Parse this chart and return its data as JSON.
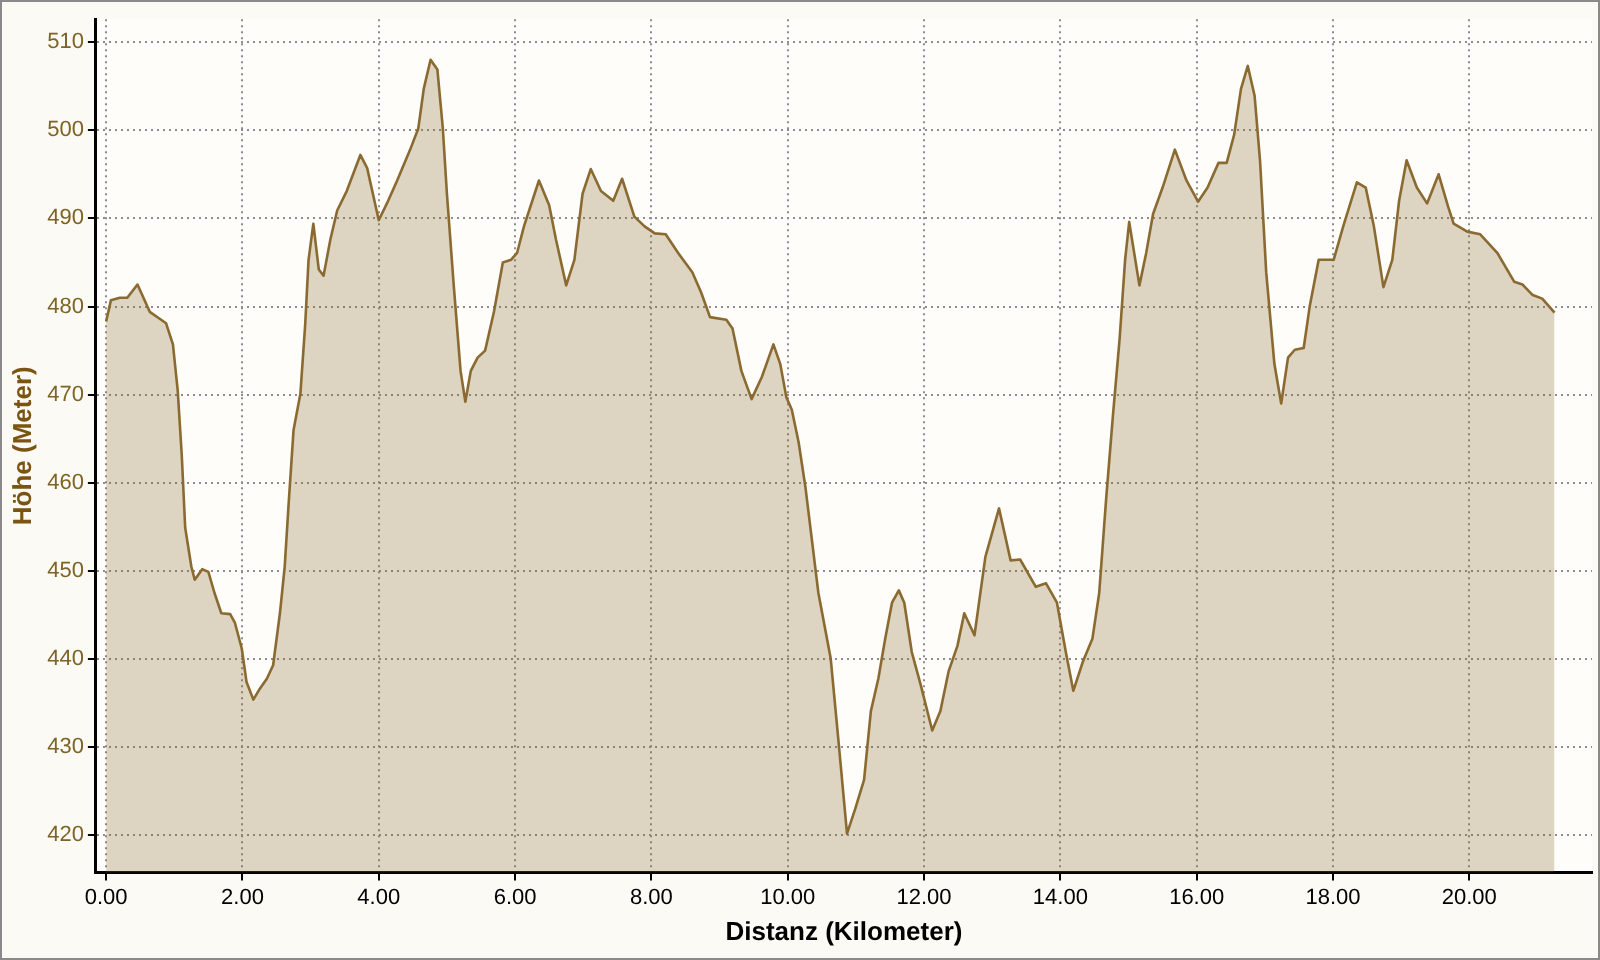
{
  "chart_data": {
    "type": "area",
    "xlabel": "Distanz (Kilometer)",
    "ylabel": "Höhe (Meter)",
    "x": [
      0,
      0.07,
      0.2,
      0.31,
      0.46,
      0.64,
      0.77,
      0.88,
      0.98,
      1.05,
      1.11,
      1.16,
      1.25,
      1.3,
      1.41,
      1.5,
      1.59,
      1.69,
      1.82,
      1.89,
      1.99,
      2.06,
      2.16,
      2.26,
      2.36,
      2.45,
      2.55,
      2.62,
      2.68,
      2.75,
      2.85,
      2.92,
      2.97,
      3.04,
      3.12,
      3.19,
      3.29,
      3.39,
      3.53,
      3.73,
      3.83,
      4.0,
      4.12,
      4.27,
      4.47,
      4.58,
      4.66,
      4.76,
      4.86,
      4.94,
      5.0,
      5.1,
      5.2,
      5.27,
      5.35,
      5.45,
      5.56,
      5.69,
      5.82,
      5.94,
      6.03,
      6.13,
      6.35,
      6.5,
      6.6,
      6.75,
      6.87,
      6.99,
      7.11,
      7.26,
      7.44,
      7.57,
      7.75,
      7.9,
      8.05,
      8.21,
      8.39,
      8.6,
      8.73,
      8.86,
      9.1,
      9.19,
      9.32,
      9.47,
      9.62,
      9.79,
      9.89,
      9.98,
      10.06,
      10.16,
      10.26,
      10.45,
      10.63,
      10.74,
      10.87,
      10.99,
      11.12,
      11.22,
      11.33,
      11.43,
      11.53,
      11.63,
      11.71,
      11.82,
      11.95,
      12.12,
      12.24,
      12.36,
      12.49,
      12.59,
      12.74,
      12.9,
      13.1,
      13.27,
      13.41,
      13.64,
      13.79,
      13.95,
      14.08,
      14.19,
      14.33,
      14.47,
      14.57,
      14.67,
      14.77,
      14.87,
      14.95,
      15.01,
      15.16,
      15.26,
      15.36,
      15.5,
      15.68,
      15.85,
      16.02,
      16.16,
      16.32,
      16.44,
      16.55,
      16.65,
      16.75,
      16.85,
      16.93,
      17.02,
      17.14,
      17.24,
      17.34,
      17.44,
      17.57,
      17.66,
      17.79,
      17.91,
      18.01,
      18.15,
      18.35,
      18.48,
      18.6,
      18.74,
      18.87,
      18.97,
      19.08,
      19.23,
      19.38,
      19.55,
      19.69,
      19.77,
      19.97,
      20.16,
      20.41,
      20.66,
      20.78,
      20.93,
      21.07,
      21.25
    ],
    "values": [
      478.3,
      480.7,
      481,
      481,
      482.5,
      479.4,
      478.7,
      478.1,
      475.7,
      470.5,
      463.1,
      454.9,
      450.5,
      449,
      450.2,
      449.9,
      447.5,
      445.2,
      445.1,
      444.1,
      441.2,
      437.4,
      435.4,
      436.7,
      437.8,
      439.3,
      445.2,
      450.5,
      457.9,
      466,
      470.1,
      477.9,
      485.3,
      489.4,
      484.2,
      483.5,
      487.6,
      490.9,
      493.1,
      497.2,
      495.7,
      489.8,
      491.7,
      494.3,
      498,
      500.2,
      504.7,
      508,
      506.9,
      500.2,
      492.8,
      482.4,
      472.7,
      469.2,
      472.7,
      474.2,
      475,
      479.4,
      485,
      485.3,
      486.1,
      489.1,
      494.3,
      491.5,
      487.6,
      482.4,
      485.3,
      492.8,
      495.6,
      493.1,
      492,
      494.5,
      490.2,
      489.1,
      488.3,
      488.2,
      486.1,
      483.9,
      481.6,
      478.8,
      478.5,
      477.5,
      472.7,
      469.5,
      472,
      475.7,
      473.5,
      469.7,
      468.3,
      464.6,
      459.5,
      447.5,
      440.1,
      431.1,
      420.2,
      423,
      426.3,
      434.1,
      437.8,
      442.3,
      446.4,
      447.8,
      446.4,
      440.8,
      437.1,
      431.9,
      434.1,
      438.6,
      441.5,
      445.2,
      442.7,
      451.6,
      457.1,
      451.2,
      451.3,
      448.2,
      448.6,
      446.4,
      440.8,
      436.4,
      439.7,
      442.3,
      447.5,
      458,
      467.5,
      476.4,
      485.3,
      489.6,
      482.4,
      486.1,
      490.5,
      493.5,
      497.8,
      494.3,
      491.9,
      493.5,
      496.3,
      496.3,
      499.5,
      504.7,
      507.3,
      503.9,
      496.5,
      483.9,
      473.5,
      469,
      474.2,
      475.1,
      475.3,
      480.1,
      485.3,
      485.3,
      485.3,
      489.1,
      494.1,
      493.5,
      489.1,
      482.2,
      485.3,
      492,
      496.6,
      493.5,
      491.7,
      495,
      491.3,
      489.4,
      488.5,
      488.2,
      486.1,
      482.8,
      482.5,
      481.3,
      480.9,
      479.3
    ],
    "color": "#8a6a30",
    "marker": "none",
    "xlim": [
      -0.15,
      21.8
    ],
    "ylim": [
      415.8,
      512.6
    ],
    "xticks": [
      {
        "value": 0,
        "label": "0.00"
      },
      {
        "value": 2,
        "label": "2.00"
      },
      {
        "value": 4,
        "label": "4.00"
      },
      {
        "value": 6,
        "label": "6.00"
      },
      {
        "value": 8,
        "label": "8.00"
      },
      {
        "value": 10,
        "label": "10.00"
      },
      {
        "value": 12,
        "label": "12.00"
      },
      {
        "value": 14,
        "label": "14.00"
      },
      {
        "value": 16,
        "label": "16.00"
      },
      {
        "value": 18,
        "label": "18.00"
      },
      {
        "value": 20,
        "label": "20.00"
      }
    ],
    "yticks": [
      420,
      430,
      440,
      450,
      460,
      470,
      480,
      490,
      500,
      510
    ],
    "grid": true
  }
}
